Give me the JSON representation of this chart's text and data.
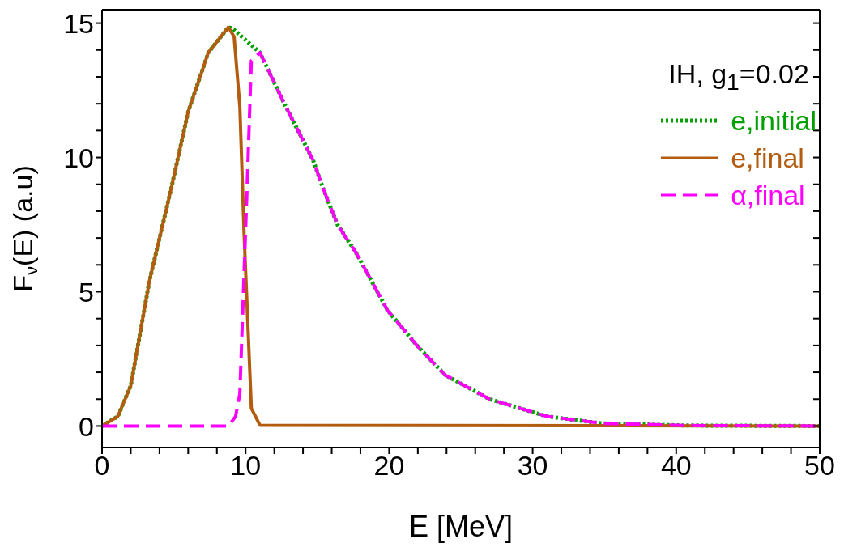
{
  "chart_data": {
    "type": "line",
    "xlabel": "E [MeV]",
    "ylabel": "F$_{ν}$(E) (a.u)",
    "legend_title": "IH, g$_{1}$=0.02",
    "legend": "top right",
    "xlim": [
      0,
      50
    ],
    "ylim": [
      -0.8,
      15.5
    ],
    "xticks": [
      0,
      {
        "value": 2,
        "label": null
      },
      {
        "value": 4,
        "label": null
      },
      {
        "value": 6,
        "label": null
      },
      {
        "value": 8,
        "label": null
      },
      10,
      {
        "value": 12,
        "label": null
      },
      {
        "value": 14,
        "label": null
      },
      {
        "value": 16,
        "label": null
      },
      {
        "value": 18,
        "label": null
      },
      20,
      {
        "value": 22,
        "label": null
      },
      {
        "value": 24,
        "label": null
      },
      {
        "value": 26,
        "label": null
      },
      {
        "value": 28,
        "label": null
      },
      30,
      {
        "value": 32,
        "label": null
      },
      {
        "value": 34,
        "label": null
      },
      {
        "value": 36,
        "label": null
      },
      {
        "value": 38,
        "label": null
      },
      40,
      {
        "value": 42,
        "label": null
      },
      {
        "value": 44,
        "label": null
      },
      {
        "value": 46,
        "label": null
      },
      {
        "value": 48,
        "label": null
      },
      50
    ],
    "yticks": [
      0,
      {
        "value": 1,
        "label": null
      },
      {
        "value": 2,
        "label": null
      },
      {
        "value": 3,
        "label": null
      },
      {
        "value": 4,
        "label": null
      },
      5,
      {
        "value": 6,
        "label": null
      },
      {
        "value": 7,
        "label": null
      },
      {
        "value": 8,
        "label": null
      },
      {
        "value": 9,
        "label": null
      },
      10,
      {
        "value": 11,
        "label": null
      },
      {
        "value": 12,
        "label": null
      },
      {
        "value": 13,
        "label": null
      },
      {
        "value": 14,
        "label": null
      },
      15
    ],
    "series": [
      {
        "name": "e,initial",
        "color": "#00a000",
        "line_style": "dotted",
        "x": [
          0,
          1.1,
          2,
          3.3,
          4.8,
          6,
          7.4,
          8.8,
          9.1,
          11,
          12.7,
          14.7,
          15.4,
          16.4,
          17.7,
          19.9,
          22.1,
          23.9,
          27,
          31,
          34.8,
          40.6,
          50
        ],
        "values": [
          0,
          0.36,
          1.5,
          5.4,
          8.8,
          11.7,
          13.9,
          14.85,
          14.8,
          13.9,
          12,
          9.9,
          8.85,
          7.5,
          6.45,
          4.3,
          2.9,
          1.9,
          1,
          0.36,
          0.1,
          0.02,
          0
        ]
      },
      {
        "name": "e,final",
        "color": "#b35c0f",
        "line_style": "solid",
        "x": [
          0,
          1.1,
          2,
          3.3,
          4.8,
          6,
          7.4,
          8.8,
          9.2,
          9.6,
          9.9,
          10.4,
          11,
          50
        ],
        "values": [
          0,
          0.36,
          1.5,
          5.4,
          8.8,
          11.7,
          13.9,
          14.85,
          14.5,
          11.9,
          7.1,
          0.66,
          0.03,
          0
        ]
      },
      {
        "name": "α,final",
        "color": "#ff00ff",
        "line_style": "dashed",
        "x": [
          0,
          8.8,
          9.3,
          9.6,
          10.1,
          10.4,
          11,
          12.7,
          14.7,
          15.4,
          16.4,
          17.7,
          19.9,
          22.1,
          23.9,
          27,
          31,
          34.8,
          40.6,
          50
        ],
        "values": [
          0,
          0,
          0.35,
          1.2,
          8.8,
          13.6,
          13.9,
          12,
          9.9,
          8.85,
          7.5,
          6.45,
          4.3,
          2.9,
          1.9,
          1,
          0.36,
          0.1,
          0.02,
          0
        ]
      }
    ]
  }
}
